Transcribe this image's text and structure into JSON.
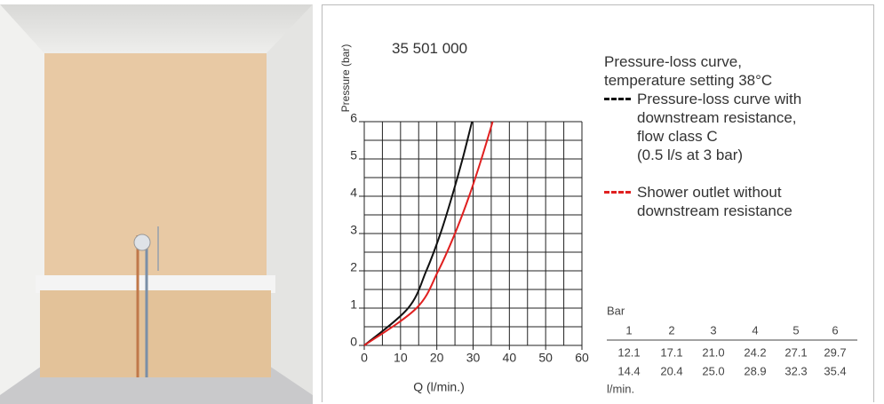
{
  "chart_data": {
    "type": "line",
    "product_number": "35 501 000",
    "title": "Pressure-loss curve,\ntemperature setting 38°C",
    "y_label": "Pressure (bar)",
    "x_label": "Q (l/min.)",
    "xlim": [
      0,
      60
    ],
    "ylim": [
      0,
      6
    ],
    "xticks": [
      0,
      10,
      20,
      30,
      40,
      50,
      60
    ],
    "yticks": [
      0,
      1,
      2,
      3,
      4,
      5,
      6
    ],
    "xgrid": [
      0,
      5,
      10,
      15,
      20,
      25,
      30,
      35,
      40,
      45,
      50,
      55,
      60
    ],
    "ygrid": [
      0,
      0.5,
      1,
      1.5,
      2,
      2.5,
      3,
      3.5,
      4,
      4.5,
      5,
      5.5,
      6
    ],
    "grid": true,
    "series": [
      {
        "name": "Pressure-loss curve with\ndownstream resistance,\nflow class C\n(0.5 l/s at 3 bar)",
        "color": "#111111",
        "x": [
          0,
          12.1,
          17.1,
          21.0,
          24.2,
          27.1,
          29.7
        ],
        "x_labels": [
          null,
          "12.1",
          "17.1",
          "21.0",
          "24.2",
          "27.1",
          "29.7"
        ],
        "values": [
          0,
          1,
          2,
          3,
          4,
          5,
          6
        ]
      },
      {
        "name": "Shower outlet without\ndownstream resistance",
        "color": "#e02020",
        "x": [
          0,
          14.4,
          20.4,
          25.0,
          28.9,
          32.3,
          35.4
        ],
        "x_labels": [
          null,
          "14.4",
          "20.4",
          "25.0",
          "28.9",
          "32.3",
          "35.4"
        ],
        "values": [
          0,
          1,
          2,
          3,
          4,
          5,
          6
        ]
      }
    ],
    "table_pressure_label": "Bar",
    "table_flow_label": "l/min."
  }
}
